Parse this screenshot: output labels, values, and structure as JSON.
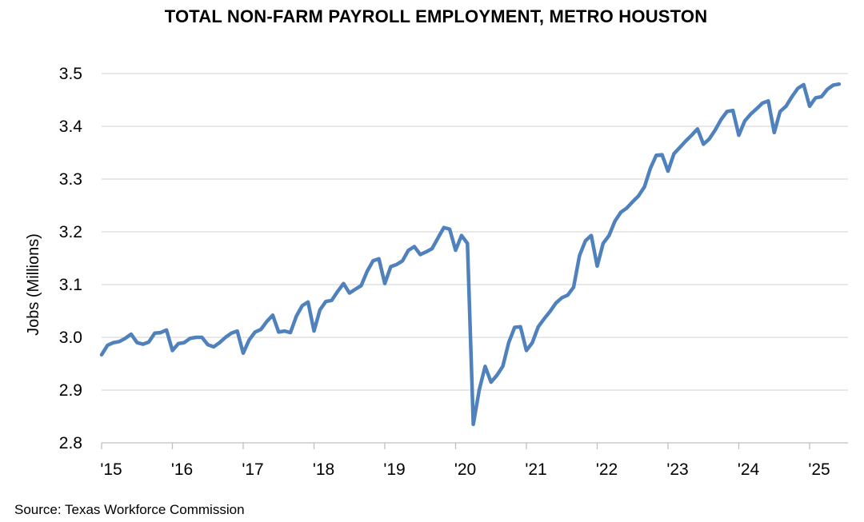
{
  "chart_data": {
    "type": "line",
    "title": "TOTAL NON-FARM PAYROLL EMPLOYMENT, METRO HOUSTON",
    "xlabel": "",
    "ylabel": "Jobs (Millions)",
    "ylim": [
      2.8,
      3.5
    ],
    "yticks": [
      "2.8",
      "2.9",
      "3.0",
      "3.1",
      "3.2",
      "3.3",
      "3.4",
      "3.5"
    ],
    "xticks": [
      "'15",
      "'16",
      "'17",
      "'18",
      "'19",
      "'20",
      "'21",
      "'22",
      "'23",
      "'24",
      "'25"
    ],
    "grid": "horizontal",
    "line_color": "#4f81bd",
    "x_start": "2015-01",
    "x_end": "2025-06",
    "values": [
      2.967,
      2.985,
      2.99,
      2.992,
      2.998,
      3.006,
      2.99,
      2.987,
      2.991,
      3.008,
      3.009,
      3.014,
      2.975,
      2.988,
      2.99,
      2.998,
      3.0,
      3.0,
      2.986,
      2.982,
      2.99,
      3.0,
      3.008,
      3.012,
      2.97,
      2.995,
      3.01,
      3.015,
      3.03,
      3.042,
      3.01,
      3.012,
      3.009,
      3.04,
      3.06,
      3.067,
      3.012,
      3.052,
      3.068,
      3.07,
      3.087,
      3.102,
      3.084,
      3.091,
      3.098,
      3.125,
      3.145,
      3.149,
      3.102,
      3.134,
      3.138,
      3.145,
      3.165,
      3.172,
      3.157,
      3.162,
      3.168,
      3.188,
      3.208,
      3.205,
      3.165,
      3.193,
      3.178,
      2.835,
      2.9,
      2.945,
      2.915,
      2.928,
      2.945,
      2.99,
      3.019,
      3.02,
      2.975,
      2.99,
      3.02,
      3.035,
      3.049,
      3.065,
      3.075,
      3.08,
      3.095,
      3.155,
      3.183,
      3.193,
      3.135,
      3.178,
      3.193,
      3.22,
      3.237,
      3.245,
      3.257,
      3.268,
      3.285,
      3.32,
      3.345,
      3.346,
      3.315,
      3.348,
      3.36,
      3.372,
      3.383,
      3.395,
      3.366,
      3.376,
      3.393,
      3.413,
      3.428,
      3.43,
      3.383,
      3.41,
      3.423,
      3.433,
      3.444,
      3.448,
      3.388,
      3.428,
      3.438,
      3.456,
      3.472,
      3.479,
      3.438,
      3.454,
      3.456,
      3.47,
      3.478,
      3.48
    ]
  },
  "source_note": "Source: Texas Workforce Commission"
}
